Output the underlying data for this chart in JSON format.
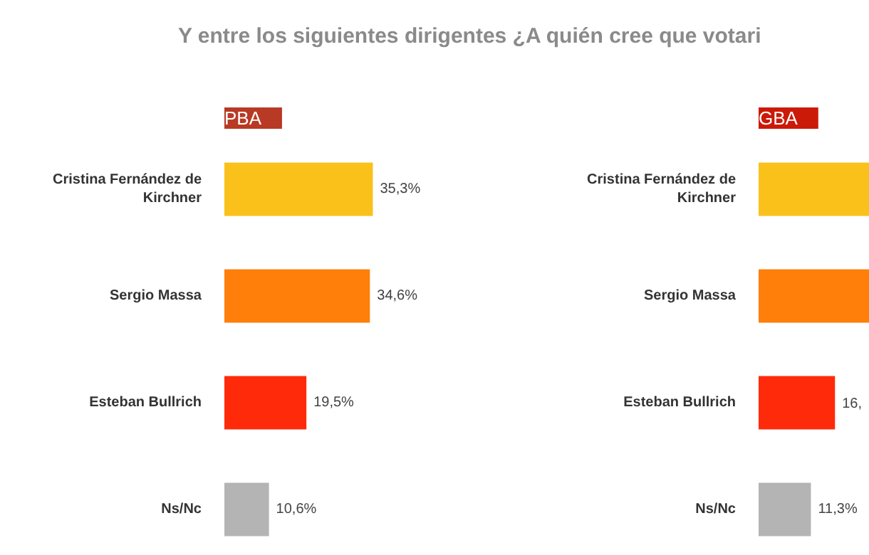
{
  "chart_data": [
    {
      "type": "bar",
      "orientation": "horizontal",
      "title": "PBA",
      "categories": [
        "Cristina Fernández de Kirchner",
        "Sergio Massa",
        "Esteban Bullrich",
        "Ns/Nc"
      ],
      "values": [
        35.3,
        34.6,
        19.5,
        10.6
      ],
      "colors": [
        "#f9c11a",
        "#ff7f0a",
        "#ff2a0a",
        "#b4b4b4"
      ],
      "value_labels": [
        "35,3%",
        "34,6%",
        "19,5%",
        "10,6%"
      ],
      "tick_labels": "y",
      "grid": false,
      "annotations": [
        "Y entre los siguientes dirigentes ¿A quién cree que votari"
      ]
    },
    {
      "type": "bar",
      "orientation": "horizontal",
      "title": "GBA",
      "categories": [
        "Cristina Fernández de Kirchner",
        "Sergio Massa",
        "Esteban Bullrich",
        "Ns/Nc"
      ],
      "values": [
        24,
        24,
        16.5,
        11.3
      ],
      "colors": [
        "#f9c11a",
        "#ff7f0a",
        "#ff2a0a",
        "#b4b4b4"
      ],
      "value_labels": [
        null,
        null,
        "16,",
        "11,3%"
      ],
      "xlim": [
        0,
        24
      ],
      "tick_labels": "y",
      "grid": false
    }
  ]
}
